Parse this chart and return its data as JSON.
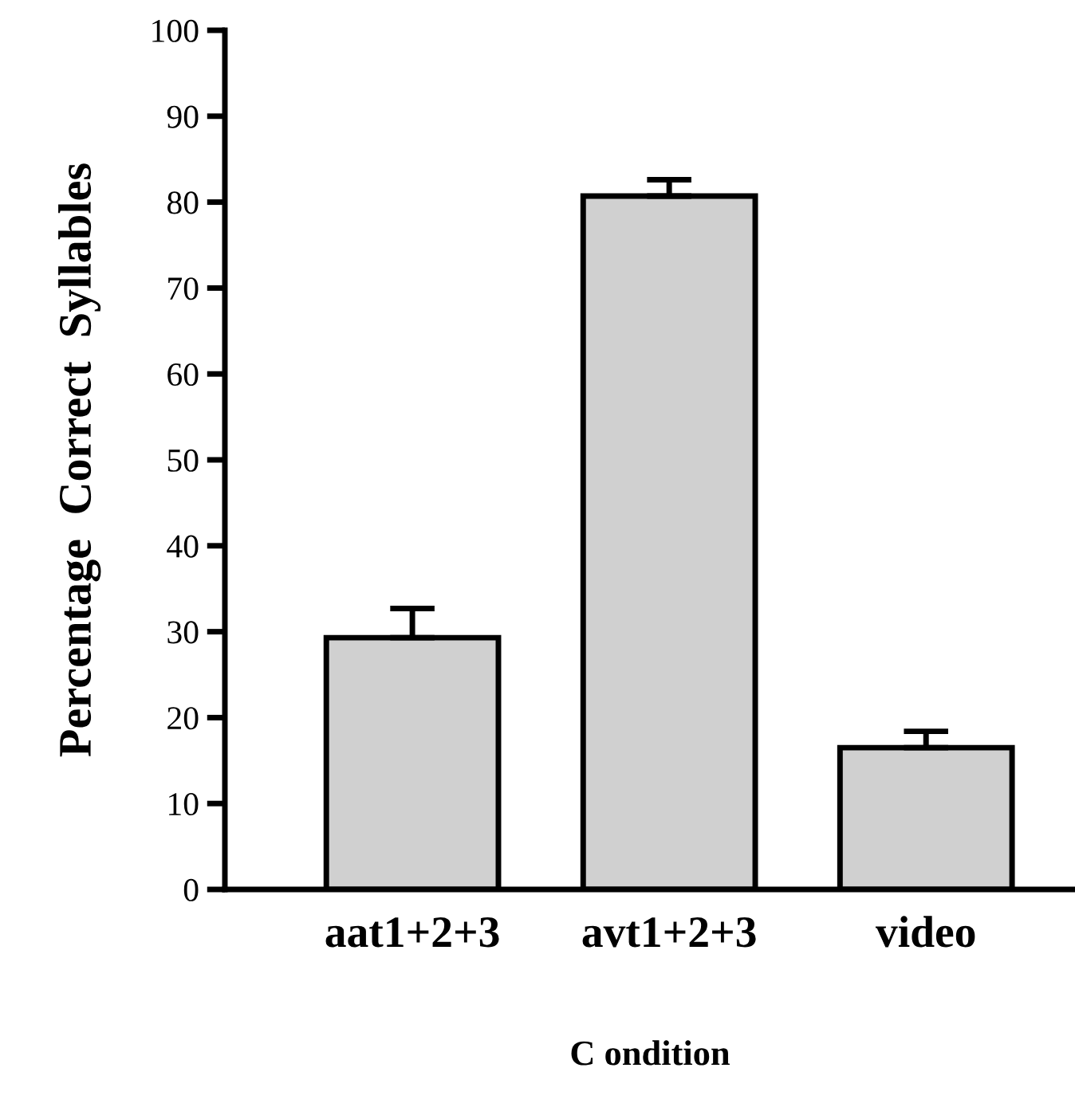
{
  "chart_data": {
    "type": "bar",
    "xlabel": "C ondition",
    "ylabel": "Percentage  Correct  Syllables",
    "categories": [
      "aat1+2+3",
      "avt1+2+3",
      "video"
    ],
    "values": [
      29.3,
      80.7,
      16.5
    ],
    "errors": [
      [
        29.3,
        32.7
      ],
      [
        80.7,
        82.6
      ],
      [
        16.5,
        18.4
      ]
    ],
    "color": "#d0d0d0",
    "ylim": [
      0,
      100
    ],
    "yticks": [
      0,
      10,
      20,
      30,
      40,
      50,
      60,
      70,
      80,
      90,
      100
    ],
    "grid": false,
    "legend": false
  }
}
